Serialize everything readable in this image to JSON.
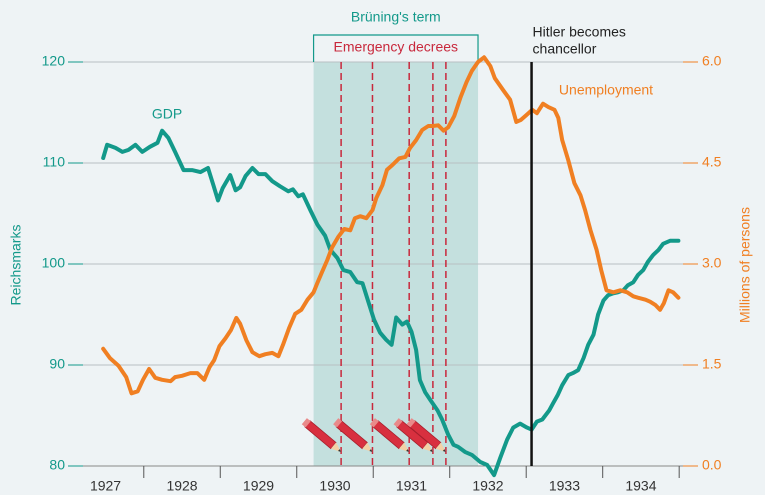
{
  "chart_data": {
    "type": "line",
    "xlim": [
      1926.8,
      1935.05
    ],
    "xticks": [
      {
        "value": 1927.5,
        "label": "1927"
      },
      {
        "value": 1928.5,
        "label": "1928"
      },
      {
        "value": 1929.5,
        "label": "1929"
      },
      {
        "value": 1930.5,
        "label": "1930"
      },
      {
        "value": 1931.5,
        "label": "1931"
      },
      {
        "value": 1932.5,
        "label": "1932"
      },
      {
        "value": 1933.5,
        "label": "1933"
      },
      {
        "value": 1934.5,
        "label": "1934"
      }
    ],
    "xtick_marks": [
      1928,
      1929,
      1930,
      1931,
      1932,
      1933,
      1934,
      1935
    ],
    "ylim": [
      80,
      120
    ],
    "yticks": [
      80,
      90,
      100,
      110,
      120
    ],
    "ylabel": "Reichsmarks",
    "y2lim": [
      0,
      6
    ],
    "y2ticks": [
      {
        "value": 0,
        "label": "0.0"
      },
      {
        "value": 1.5,
        "label": "1.5"
      },
      {
        "value": 3,
        "label": "3.0"
      },
      {
        "value": 4.5,
        "label": "4.5"
      },
      {
        "value": 6,
        "label": "6.0"
      }
    ],
    "y2label": "Millions of persons",
    "grid": true,
    "series": [
      {
        "name": "GDP",
        "color": "#13998a",
        "axis": "y",
        "x": [
          1927.47,
          1927.52,
          1927.63,
          1927.72,
          1927.8,
          1927.89,
          1927.98,
          1928.08,
          1928.18,
          1928.24,
          1928.32,
          1928.41,
          1928.52,
          1928.63,
          1928.74,
          1928.84,
          1928.91,
          1928.97,
          1929.03,
          1929.13,
          1929.2,
          1929.26,
          1929.33,
          1929.42,
          1929.5,
          1929.59,
          1929.68,
          1929.78,
          1929.89,
          1929.95,
          1930.02,
          1930.08,
          1930.18,
          1930.27,
          1930.37,
          1930.44,
          1930.53,
          1930.61,
          1930.7,
          1930.79,
          1930.86,
          1930.93,
          1931.01,
          1931.09,
          1931.17,
          1931.24,
          1931.3,
          1931.38,
          1931.44,
          1931.5,
          1931.56,
          1931.61,
          1931.68,
          1931.75,
          1931.84,
          1931.9,
          1931.98,
          1932.05,
          1932.11,
          1932.2,
          1932.29,
          1932.4,
          1932.49,
          1932.58,
          1932.66,
          1932.75,
          1932.83,
          1932.92,
          1933.01,
          1933.07,
          1933.14,
          1933.21,
          1933.3,
          1933.35,
          1933.41,
          1933.47,
          1933.55,
          1933.61,
          1933.68,
          1933.75,
          1933.81,
          1933.88,
          1933.94,
          1934.01,
          1934.07,
          1934.14,
          1934.2,
          1934.27,
          1934.33,
          1934.4,
          1934.46,
          1934.53,
          1934.59,
          1934.66,
          1934.73,
          1934.79,
          1934.88,
          1934.99
        ],
        "values": [
          110.5,
          111.8,
          111.5,
          111.1,
          111.3,
          111.8,
          111.1,
          111.6,
          112.0,
          113.2,
          112.5,
          111.1,
          109.3,
          109.3,
          109.1,
          109.5,
          107.8,
          106.3,
          107.5,
          108.8,
          107.3,
          107.6,
          108.7,
          109.5,
          108.9,
          108.9,
          108.2,
          107.7,
          107.2,
          107.4,
          106.7,
          106.9,
          105.3,
          103.9,
          102.8,
          101.4,
          100.6,
          99.4,
          99.2,
          98.2,
          98.1,
          96.4,
          94.5,
          93.2,
          92.5,
          92.0,
          94.7,
          94.0,
          94.3,
          93.3,
          91.5,
          88.5,
          87.3,
          86.5,
          85.5,
          84.6,
          83.1,
          82.1,
          81.9,
          81.4,
          81.1,
          80.4,
          80.1,
          79.1,
          80.8,
          82.6,
          83.8,
          84.2,
          83.8,
          83.6,
          84.4,
          84.6,
          85.5,
          86.2,
          87.0,
          88.0,
          89.0,
          89.2,
          89.5,
          90.7,
          92.0,
          93.0,
          95.0,
          96.4,
          96.9,
          97.1,
          97.2,
          97.4,
          97.9,
          98.2,
          98.9,
          99.4,
          100.2,
          100.9,
          101.4,
          102.0,
          102.3,
          102.3
        ]
      },
      {
        "name": "Unemployment",
        "color": "#f07f22",
        "axis": "y2",
        "x": [
          1927.47,
          1927.56,
          1927.67,
          1927.77,
          1927.84,
          1927.92,
          1927.99,
          1928.07,
          1928.15,
          1928.24,
          1928.35,
          1928.41,
          1928.5,
          1928.61,
          1928.7,
          1928.79,
          1928.86,
          1928.92,
          1928.99,
          1929.07,
          1929.14,
          1929.21,
          1929.26,
          1929.34,
          1929.42,
          1929.51,
          1929.59,
          1929.68,
          1929.76,
          1929.82,
          1929.9,
          1929.98,
          1930.06,
          1930.14,
          1930.22,
          1930.27,
          1930.33,
          1930.4,
          1930.46,
          1930.54,
          1930.62,
          1930.7,
          1930.76,
          1930.83,
          1930.91,
          1930.99,
          1931.04,
          1931.12,
          1931.18,
          1931.25,
          1931.34,
          1931.42,
          1931.48,
          1931.56,
          1931.64,
          1931.72,
          1931.78,
          1931.85,
          1931.92,
          1931.98,
          1932.06,
          1932.14,
          1932.22,
          1932.29,
          1932.37,
          1932.45,
          1932.53,
          1932.59,
          1932.7,
          1932.79,
          1932.87,
          1932.93,
          1933.0,
          1933.08,
          1933.14,
          1933.22,
          1933.29,
          1933.37,
          1933.42,
          1933.47,
          1933.55,
          1933.63,
          1933.71,
          1933.77,
          1933.84,
          1933.92,
          1933.98,
          1934.05,
          1934.14,
          1934.23,
          1934.32,
          1934.4,
          1934.46,
          1934.56,
          1934.62,
          1934.69,
          1934.75,
          1934.8,
          1934.86,
          1934.92,
          1934.99
        ],
        "values": [
          1.74,
          1.6,
          1.49,
          1.32,
          1.08,
          1.11,
          1.28,
          1.44,
          1.31,
          1.28,
          1.26,
          1.32,
          1.34,
          1.38,
          1.38,
          1.28,
          1.47,
          1.57,
          1.78,
          1.9,
          2.02,
          2.2,
          2.11,
          1.87,
          1.69,
          1.63,
          1.66,
          1.68,
          1.63,
          1.8,
          2.05,
          2.26,
          2.32,
          2.47,
          2.58,
          2.72,
          2.88,
          3.06,
          3.24,
          3.4,
          3.52,
          3.5,
          3.68,
          3.71,
          3.68,
          3.8,
          3.98,
          4.17,
          4.4,
          4.47,
          4.57,
          4.59,
          4.72,
          4.84,
          4.99,
          5.05,
          5.05,
          5.06,
          4.98,
          5.03,
          5.2,
          5.47,
          5.7,
          5.87,
          6.0,
          6.07,
          5.94,
          5.76,
          5.58,
          5.44,
          5.11,
          5.14,
          5.21,
          5.29,
          5.24,
          5.38,
          5.33,
          5.29,
          5.17,
          4.84,
          4.54,
          4.2,
          4.02,
          3.8,
          3.5,
          3.21,
          2.91,
          2.61,
          2.58,
          2.61,
          2.58,
          2.52,
          2.5,
          2.47,
          2.44,
          2.39,
          2.32,
          2.42,
          2.61,
          2.58,
          2.5
        ]
      }
    ],
    "annotations": {
      "term": {
        "text": "Brüning's term",
        "start": 1930.22,
        "end": 1932.37
      },
      "decrees": {
        "text": "Emergency decrees",
        "dates": [
          1930.58,
          1930.99,
          1931.47,
          1931.78,
          1931.95
        ]
      },
      "chancellor": {
        "lines": [
          "Hitler becomes",
          "chancellor"
        ],
        "date": 1933.07
      }
    }
  }
}
